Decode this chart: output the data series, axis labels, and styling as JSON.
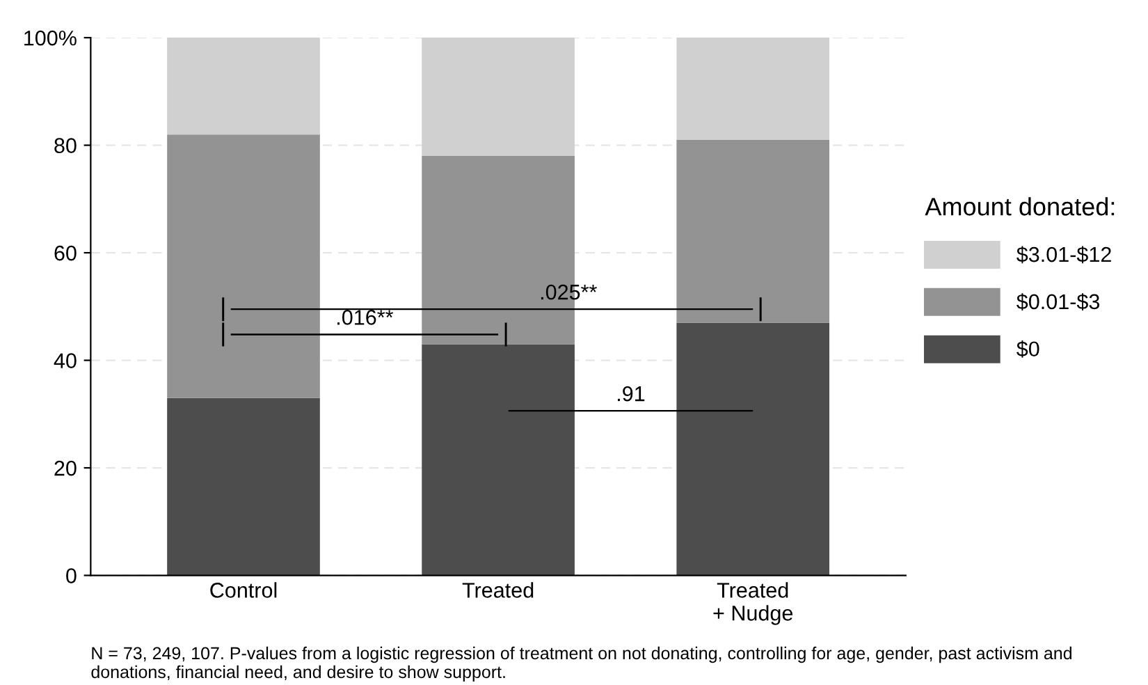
{
  "chart_data": {
    "type": "bar",
    "stacked": true,
    "categories": [
      "Control",
      "Treated",
      "Treated\n+ Nudge"
    ],
    "series": [
      {
        "name": "$0",
        "color": "#4d4d4d",
        "values": [
          33,
          43,
          47
        ]
      },
      {
        "name": "$0.01-$3",
        "color": "#939393",
        "values": [
          49,
          35,
          34
        ]
      },
      {
        "name": "$3.01-$12",
        "color": "#d0d0d0",
        "values": [
          18,
          22,
          19
        ]
      }
    ],
    "ylim": [
      0,
      100
    ],
    "yticks": [
      0,
      20,
      40,
      60,
      80,
      {
        "value": 100,
        "label": "100%"
      }
    ],
    "grid": "y",
    "legend": "right",
    "legend_title": "Amount donated:",
    "annotations": [
      ".025**",
      ".016**",
      ".91",
      "N = 73, 249, 107. P-values from a logistic regression of treatment on not donating, controlling for age, gender, past activism and donations, financial need, and desire to show support."
    ]
  }
}
